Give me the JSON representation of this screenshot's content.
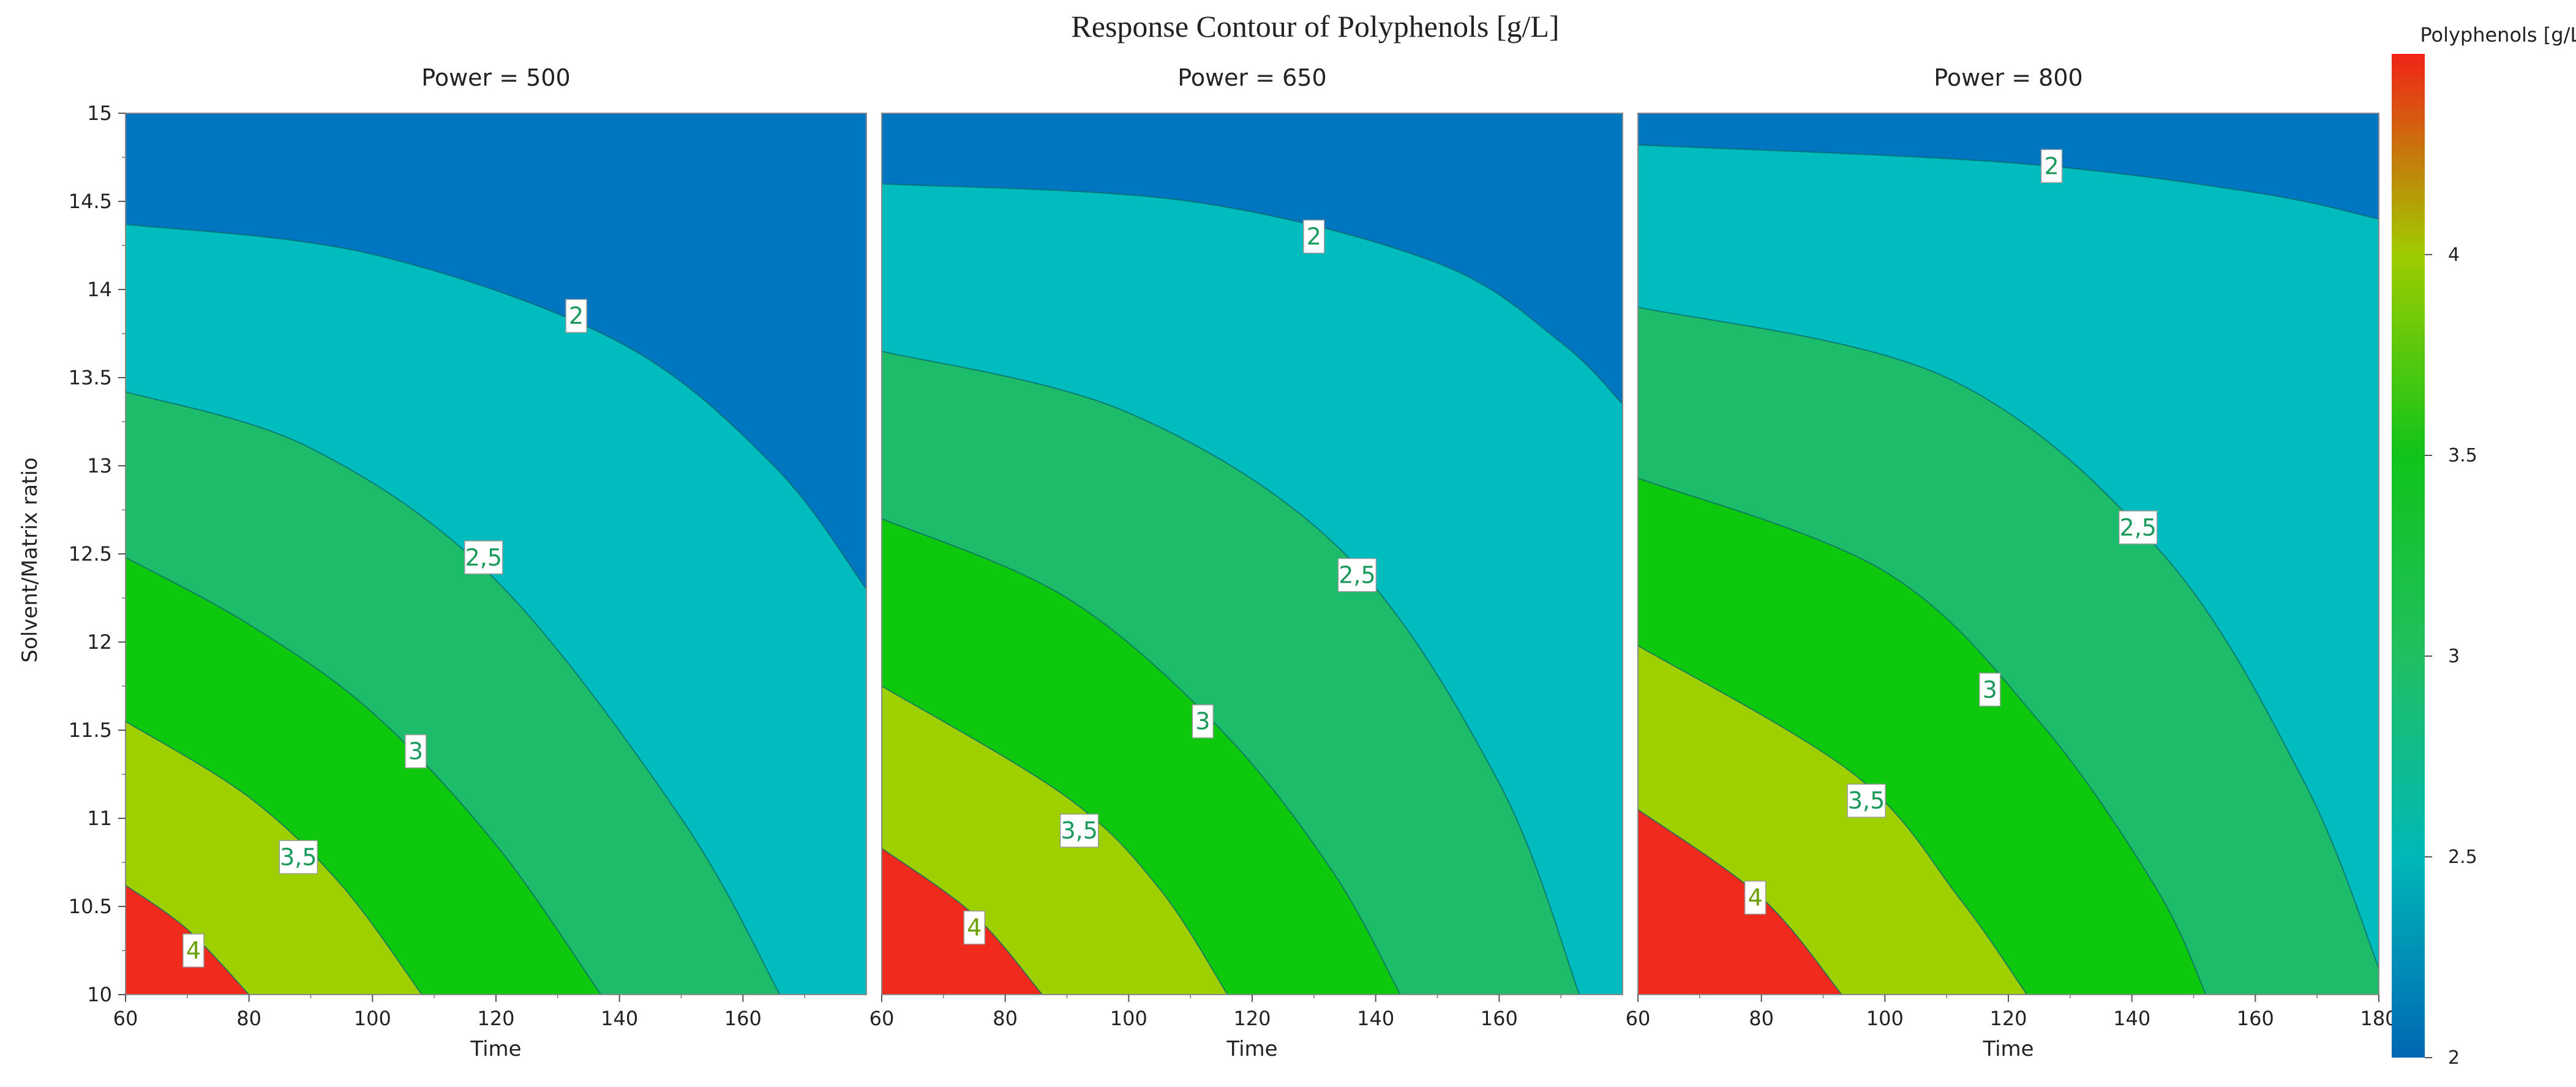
{
  "chart_data": {
    "type": "contour",
    "title": "Response Contour of Polyphenols [g/L]",
    "panels": [
      {
        "title": "Power = 500",
        "power": 500,
        "xlabel": "Time",
        "ylabel": "Solvent/Matrix ratio",
        "xlim": [
          60,
          180
        ],
        "ylim": [
          10,
          15
        ],
        "xticks": [
          "60",
          "80",
          "100",
          "120",
          "140",
          "160"
        ],
        "yticks": [
          "10",
          "10.5",
          "11",
          "11.5",
          "12",
          "12.5",
          "13",
          "13.5",
          "14",
          "14.5",
          "15"
        ],
        "contours": [
          {
            "level": 4.0,
            "label": "4",
            "label_at": [
              71,
              10.25
            ],
            "points": [
              [
                60,
                10.62
              ],
              [
                70,
                10.37
              ],
              [
                80,
                10.0
              ]
            ]
          },
          {
            "level": 3.5,
            "label": "3,5",
            "label_at": [
              88,
              10.78
            ],
            "points": [
              [
                60,
                11.55
              ],
              [
                80,
                11.12
              ],
              [
                95,
                10.62
              ],
              [
                108,
                10.0
              ]
            ]
          },
          {
            "level": 3.0,
            "label": "3",
            "label_at": [
              107,
              11.38
            ],
            "points": [
              [
                60,
                12.48
              ],
              [
                80,
                12.1
              ],
              [
                100,
                11.6
              ],
              [
                120,
                10.85
              ],
              [
                137,
                10.0
              ]
            ]
          },
          {
            "level": 2.5,
            "label": "2,5",
            "label_at": [
              118,
              12.48
            ],
            "points": [
              [
                60,
                13.42
              ],
              [
                90,
                13.1
              ],
              [
                120,
                12.35
              ],
              [
                150,
                11.0
              ],
              [
                166,
                10.0
              ]
            ]
          },
          {
            "level": 2.0,
            "label": "2",
            "label_at": [
              133,
              13.85
            ],
            "points": [
              [
                60,
                14.37
              ],
              [
                100,
                14.2
              ],
              [
                140,
                13.7
              ],
              [
                165,
                13.0
              ],
              [
                180,
                12.3
              ]
            ]
          }
        ]
      },
      {
        "title": "Power = 650",
        "power": 650,
        "xlabel": "Time",
        "xlim": [
          60,
          180
        ],
        "ylim": [
          10,
          15
        ],
        "xticks": [
          "60",
          "80",
          "100",
          "120",
          "140",
          "160"
        ],
        "contours": [
          {
            "level": 4.0,
            "label": "4",
            "label_at": [
              75,
              10.38
            ],
            "points": [
              [
                60,
                10.83
              ],
              [
                75,
                10.45
              ],
              [
                86,
                10.0
              ]
            ]
          },
          {
            "level": 3.5,
            "label": "3,5",
            "label_at": [
              92,
              10.93
            ],
            "points": [
              [
                60,
                11.75
              ],
              [
                90,
                11.12
              ],
              [
                105,
                10.6
              ],
              [
                116,
                10.0
              ]
            ]
          },
          {
            "level": 3.0,
            "label": "3",
            "label_at": [
              112,
              11.55
            ],
            "points": [
              [
                60,
                12.7
              ],
              [
                90,
                12.25
              ],
              [
                115,
                11.5
              ],
              [
                133,
                10.7
              ],
              [
                144,
                10.0
              ]
            ]
          },
          {
            "level": 2.5,
            "label": "2,5",
            "label_at": [
              137,
              12.38
            ],
            "points": [
              [
                60,
                13.65
              ],
              [
                100,
                13.3
              ],
              [
                135,
                12.5
              ],
              [
                160,
                11.2
              ],
              [
                173,
                10.0
              ]
            ]
          },
          {
            "level": 2.0,
            "label": "2",
            "label_at": [
              130,
              14.3
            ],
            "points": [
              [
                60,
                14.6
              ],
              [
                110,
                14.5
              ],
              [
                150,
                14.15
              ],
              [
                170,
                13.7
              ],
              [
                180,
                13.35
              ]
            ]
          }
        ]
      },
      {
        "title": "Power = 800",
        "power": 800,
        "xlabel": "Time",
        "xlim": [
          60,
          180
        ],
        "ylim": [
          10,
          15
        ],
        "xticks": [
          "60",
          "80",
          "100",
          "120",
          "140",
          "160",
          "180"
        ],
        "contours": [
          {
            "level": 4.0,
            "label": "4",
            "label_at": [
              79,
              10.55
            ],
            "points": [
              [
                60,
                11.05
              ],
              [
                80,
                10.55
              ],
              [
                93,
                10.0
              ]
            ]
          },
          {
            "level": 3.5,
            "label": "3,5",
            "label_at": [
              97,
              11.1
            ],
            "points": [
              [
                60,
                11.98
              ],
              [
                95,
                11.25
              ],
              [
                112,
                10.55
              ],
              [
                123,
                10.0
              ]
            ]
          },
          {
            "level": 3.0,
            "label": "3",
            "label_at": [
              117,
              11.73
            ],
            "points": [
              [
                60,
                12.93
              ],
              [
                100,
                12.4
              ],
              [
                125,
                11.55
              ],
              [
                144,
                10.6
              ],
              [
                152,
                10.0
              ]
            ]
          },
          {
            "level": 2.5,
            "label": "2,5",
            "label_at": [
              141,
              12.65
            ],
            "points": [
              [
                60,
                13.9
              ],
              [
                110,
                13.5
              ],
              [
                145,
                12.5
              ],
              [
                168,
                11.2
              ],
              [
                180,
                10.15
              ]
            ]
          },
          {
            "level": 2.0,
            "label": "2",
            "label_at": [
              127,
              14.7
            ],
            "points": [
              [
                60,
                14.82
              ],
              [
                120,
                14.72
              ],
              [
                160,
                14.55
              ],
              [
                180,
                14.4
              ]
            ]
          }
        ]
      }
    ],
    "colorbar": {
      "title": "Polyphenols [g/L]",
      "range": [
        2,
        4.5
      ],
      "ticks": [
        "2",
        "2.5",
        "3",
        "3.5",
        "4"
      ],
      "stops": [
        {
          "value": 2.0,
          "color": "#0067b4"
        },
        {
          "value": 2.5,
          "color": "#00b8b8"
        },
        {
          "value": 3.0,
          "color": "#20bf60"
        },
        {
          "value": 3.5,
          "color": "#10c41a"
        },
        {
          "value": 4.0,
          "color": "#9fcc00"
        },
        {
          "value": 4.5,
          "color": "#f02418"
        }
      ]
    },
    "fill_colors": {
      "below_2": "#0076c0",
      "2_to_2.5": "#00bcbe",
      "2.5_to_3": "#1dbc6a",
      "3_to_3.5": "#0ec80e",
      "3.5_to_4": "#9ed000",
      "above_4": "#f02a1c"
    },
    "line_color": "#0b6a6a"
  }
}
